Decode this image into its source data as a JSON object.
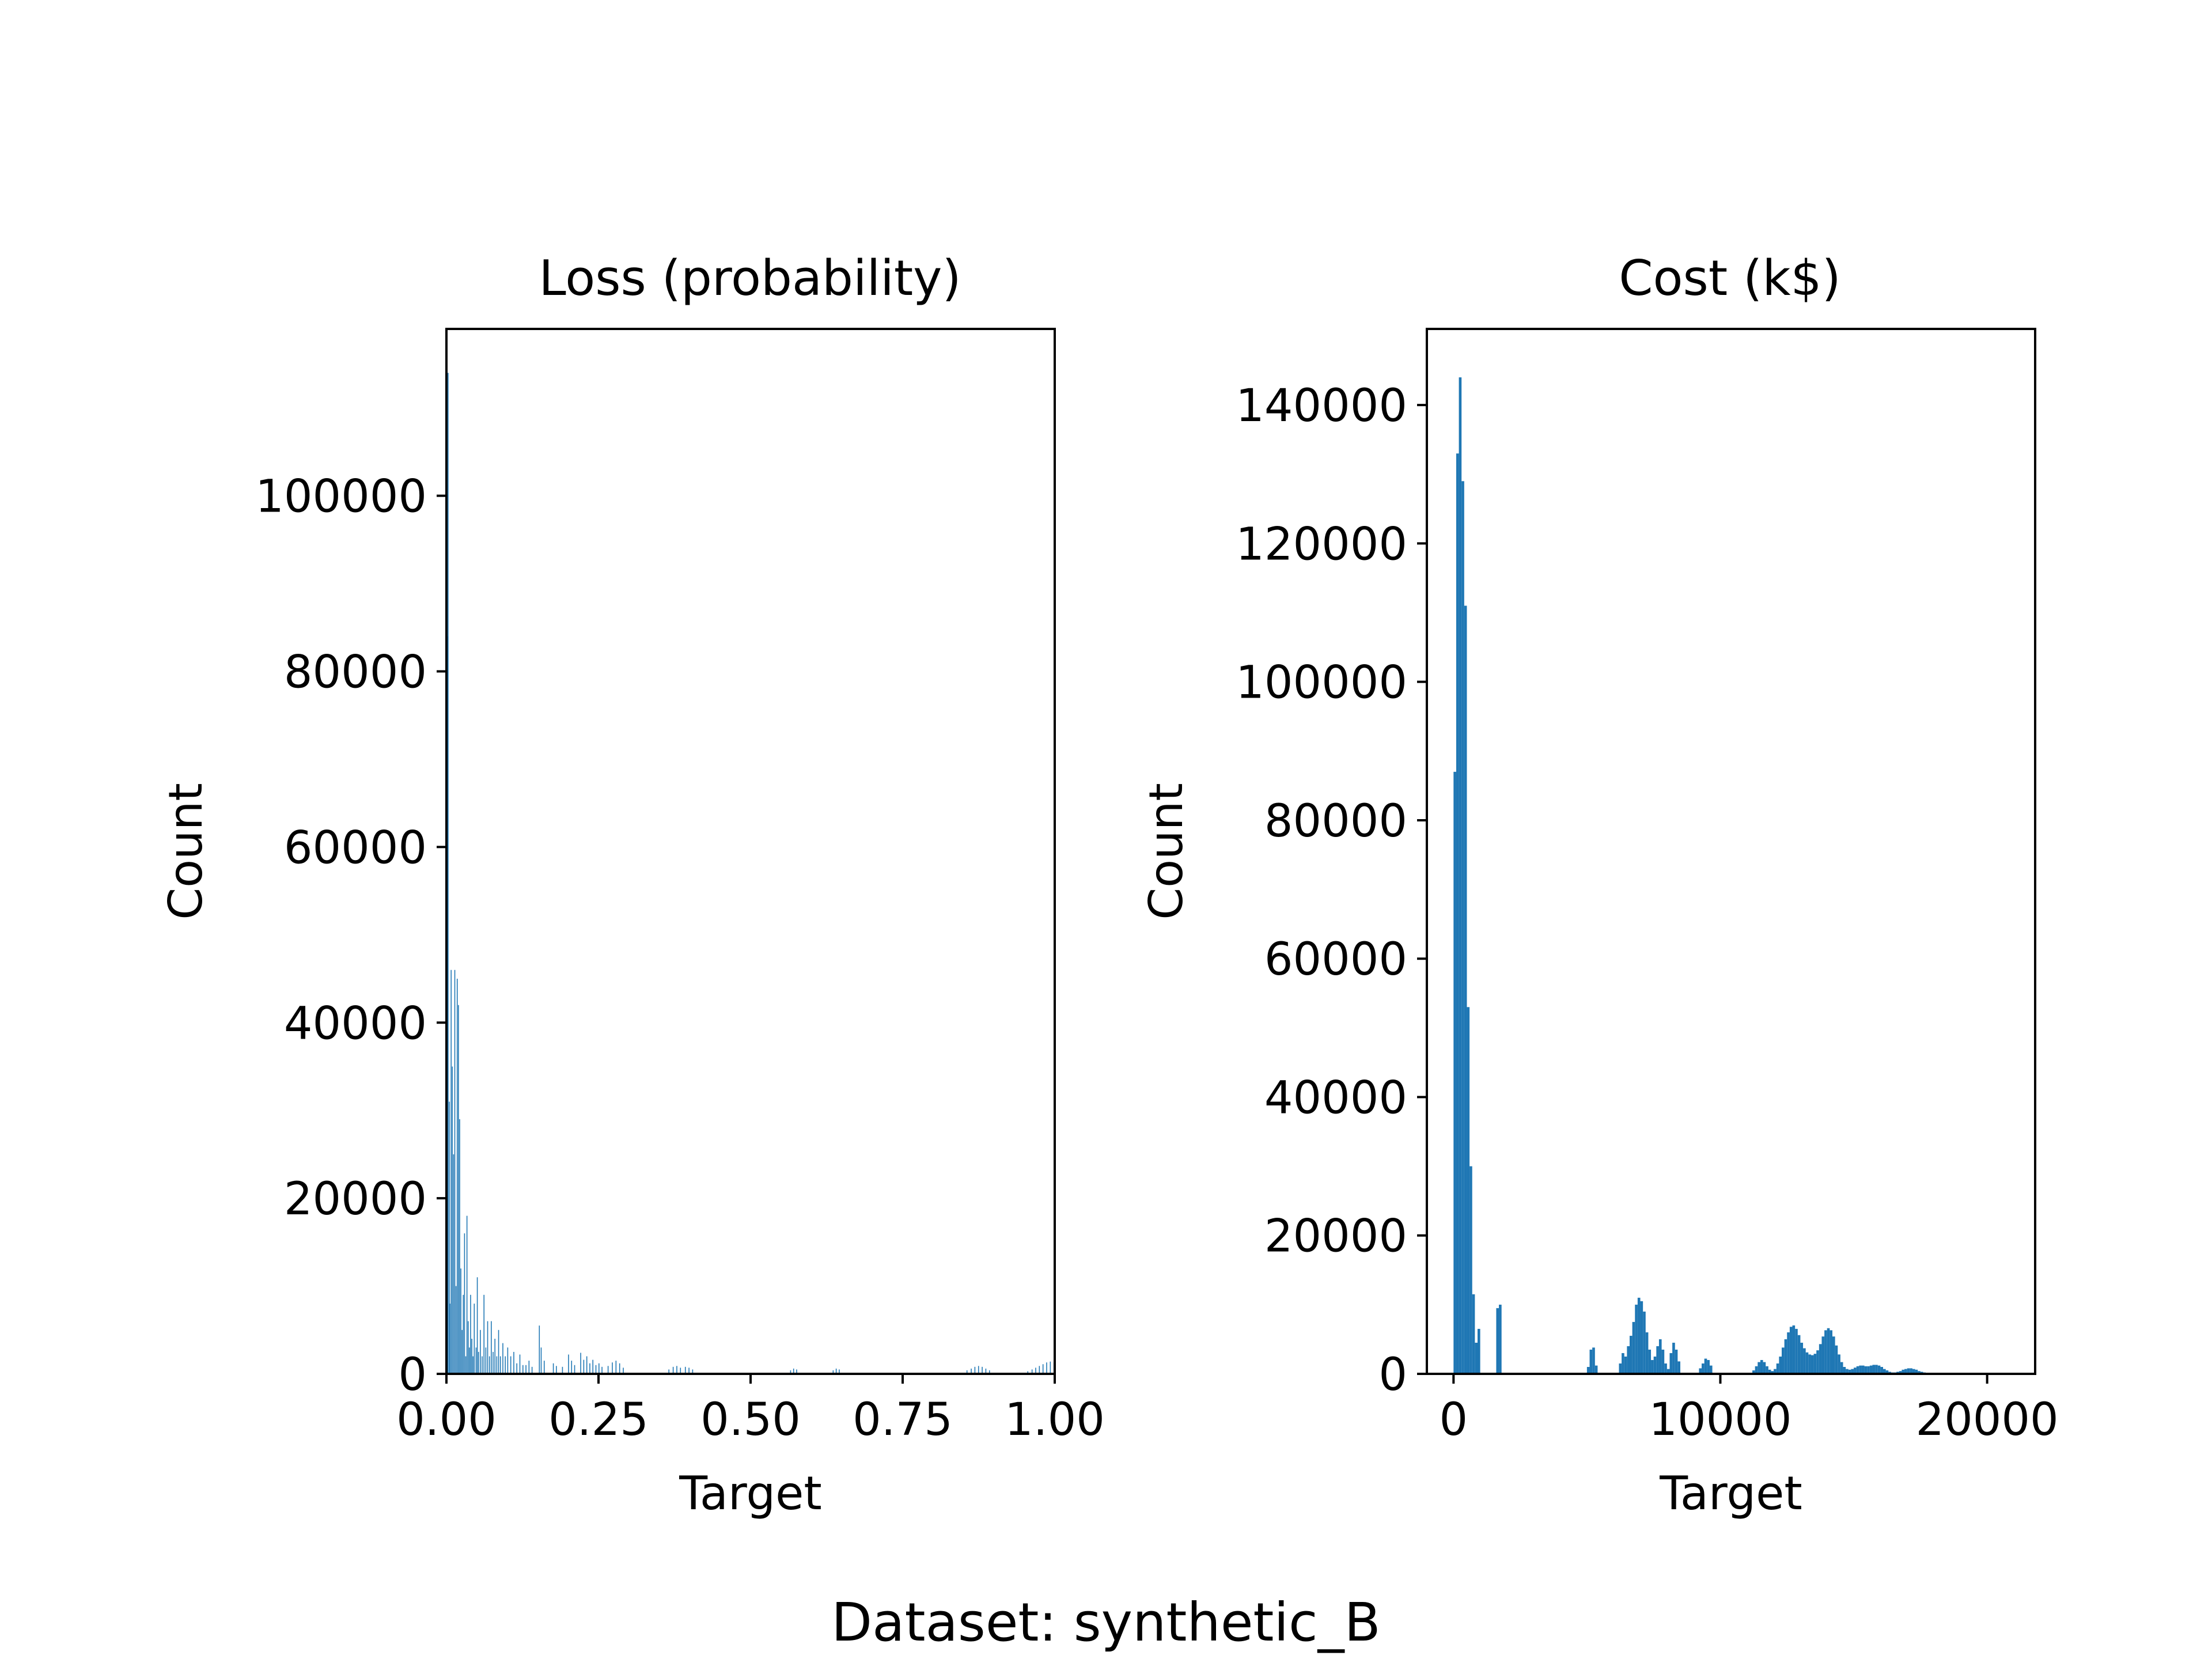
{
  "suptitle": "Dataset: synthetic_B",
  "chart_data": [
    {
      "type": "bar",
      "title": "Loss (probability)",
      "xlabel": "Target",
      "ylabel": "Count",
      "xlim": [
        0,
        1
      ],
      "ylim": [
        0,
        119000
      ],
      "grid": false,
      "color": "#1f77b4",
      "xticks": [
        0,
        0.25,
        0.5,
        0.75,
        1
      ],
      "xtick_labels": [
        "0.00",
        "0.25",
        "0.50",
        "0.75",
        "1.00"
      ],
      "yticks": [
        0,
        20000,
        40000,
        60000,
        80000,
        100000
      ],
      "ytick_labels": [
        "0",
        "20000",
        "40000",
        "60000",
        "80000",
        "100000"
      ],
      "bin_width": 0.0015,
      "bins": [
        [
          0.0,
          12000
        ],
        [
          0.001,
          84000
        ],
        [
          0.002,
          114000
        ],
        [
          0.004,
          31000
        ],
        [
          0.005,
          8000
        ],
        [
          0.007,
          46000
        ],
        [
          0.009,
          35000
        ],
        [
          0.011,
          25000
        ],
        [
          0.013,
          46000
        ],
        [
          0.015,
          10000
        ],
        [
          0.017,
          45000
        ],
        [
          0.019,
          42000
        ],
        [
          0.021,
          29000
        ],
        [
          0.023,
          12000
        ],
        [
          0.025,
          5000
        ],
        [
          0.027,
          9000
        ],
        [
          0.029,
          16000
        ],
        [
          0.031,
          2000
        ],
        [
          0.033,
          18000
        ],
        [
          0.035,
          6000
        ],
        [
          0.037,
          3000
        ],
        [
          0.039,
          9000
        ],
        [
          0.041,
          4000
        ],
        [
          0.043,
          2000
        ],
        [
          0.045,
          8000
        ],
        [
          0.048,
          3000
        ],
        [
          0.05,
          11000
        ],
        [
          0.052,
          2500
        ],
        [
          0.055,
          5000
        ],
        [
          0.058,
          2000
        ],
        [
          0.061,
          9000
        ],
        [
          0.064,
          3000
        ],
        [
          0.067,
          6000
        ],
        [
          0.07,
          2000
        ],
        [
          0.073,
          6000
        ],
        [
          0.076,
          2500
        ],
        [
          0.079,
          4000
        ],
        [
          0.082,
          2000
        ],
        [
          0.085,
          5000
        ],
        [
          0.088,
          2000
        ],
        [
          0.092,
          3500
        ],
        [
          0.096,
          2000
        ],
        [
          0.1,
          3000
        ],
        [
          0.105,
          2000
        ],
        [
          0.11,
          2500
        ],
        [
          0.115,
          1200
        ],
        [
          0.12,
          2200
        ],
        [
          0.125,
          1000
        ],
        [
          0.13,
          1000
        ],
        [
          0.135,
          1500
        ],
        [
          0.14,
          800
        ],
        [
          0.152,
          5500
        ],
        [
          0.155,
          3000
        ],
        [
          0.16,
          1500
        ],
        [
          0.175,
          1200
        ],
        [
          0.18,
          900
        ],
        [
          0.19,
          800
        ],
        [
          0.2,
          2200
        ],
        [
          0.205,
          1500
        ],
        [
          0.21,
          1000
        ],
        [
          0.22,
          2400
        ],
        [
          0.225,
          1600
        ],
        [
          0.23,
          2000
        ],
        [
          0.235,
          1200
        ],
        [
          0.24,
          1600
        ],
        [
          0.245,
          1000
        ],
        [
          0.25,
          1200
        ],
        [
          0.255,
          800
        ],
        [
          0.265,
          900
        ],
        [
          0.272,
          1300
        ],
        [
          0.278,
          1500
        ],
        [
          0.284,
          1200
        ],
        [
          0.29,
          700
        ],
        [
          0.365,
          500
        ],
        [
          0.372,
          800
        ],
        [
          0.378,
          900
        ],
        [
          0.384,
          700
        ],
        [
          0.392,
          800
        ],
        [
          0.398,
          700
        ],
        [
          0.404,
          500
        ],
        [
          0.565,
          400
        ],
        [
          0.57,
          600
        ],
        [
          0.575,
          500
        ],
        [
          0.635,
          400
        ],
        [
          0.64,
          600
        ],
        [
          0.645,
          500
        ],
        [
          0.855,
          400
        ],
        [
          0.862,
          600
        ],
        [
          0.868,
          800
        ],
        [
          0.874,
          900
        ],
        [
          0.88,
          800
        ],
        [
          0.886,
          600
        ],
        [
          0.892,
          400
        ],
        [
          0.955,
          300
        ],
        [
          0.962,
          500
        ],
        [
          0.968,
          700
        ],
        [
          0.974,
          900
        ],
        [
          0.98,
          1100
        ],
        [
          0.986,
          1300
        ],
        [
          0.992,
          1400
        ],
        [
          0.998,
          1300
        ]
      ]
    },
    {
      "type": "bar",
      "title": "Cost (k$)",
      "xlabel": "Target",
      "ylabel": "Count",
      "xlim": [
        -1000,
        21800
      ],
      "ylim": [
        0,
        151000
      ],
      "grid": false,
      "color": "#1f77b4",
      "xticks": [
        0,
        10000,
        20000
      ],
      "xtick_labels": [
        "0",
        "10000",
        "20000"
      ],
      "yticks": [
        0,
        20000,
        40000,
        60000,
        80000,
        100000,
        120000,
        140000
      ],
      "ytick_labels": [
        "0",
        "20000",
        "40000",
        "60000",
        "80000",
        "100000",
        "120000",
        "140000"
      ],
      "bin_width": 100,
      "bins": [
        [
          0,
          87000
        ],
        [
          100,
          133000
        ],
        [
          200,
          144000
        ],
        [
          300,
          129000
        ],
        [
          400,
          111000
        ],
        [
          500,
          53000
        ],
        [
          600,
          30000
        ],
        [
          700,
          11500
        ],
        [
          800,
          4500
        ],
        [
          900,
          6500
        ],
        [
          1600,
          9500
        ],
        [
          1700,
          10000
        ],
        [
          5000,
          1000
        ],
        [
          5100,
          3500
        ],
        [
          5200,
          3800
        ],
        [
          5300,
          1200
        ],
        [
          6200,
          1500
        ],
        [
          6300,
          3000
        ],
        [
          6400,
          2500
        ],
        [
          6500,
          4000
        ],
        [
          6600,
          5500
        ],
        [
          6700,
          7500
        ],
        [
          6800,
          10000
        ],
        [
          6900,
          11000
        ],
        [
          7000,
          10500
        ],
        [
          7100,
          9000
        ],
        [
          7200,
          6000
        ],
        [
          7300,
          3500
        ],
        [
          7400,
          2000
        ],
        [
          7500,
          2500
        ],
        [
          7600,
          4000
        ],
        [
          7700,
          5000
        ],
        [
          7800,
          3500
        ],
        [
          7900,
          1500
        ],
        [
          8000,
          700
        ],
        [
          8100,
          3000
        ],
        [
          8200,
          4500
        ],
        [
          8300,
          3500
        ],
        [
          8400,
          1800
        ],
        [
          9200,
          800
        ],
        [
          9300,
          1500
        ],
        [
          9400,
          2200
        ],
        [
          9500,
          2000
        ],
        [
          9600,
          1200
        ],
        [
          11200,
          500
        ],
        [
          11300,
          1100
        ],
        [
          11400,
          1700
        ],
        [
          11500,
          2000
        ],
        [
          11600,
          1700
        ],
        [
          11700,
          1100
        ],
        [
          11800,
          600
        ],
        [
          11900,
          400
        ],
        [
          12000,
          700
        ],
        [
          12100,
          1500
        ],
        [
          12200,
          2500
        ],
        [
          12300,
          3800
        ],
        [
          12400,
          5000
        ],
        [
          12500,
          6000
        ],
        [
          12600,
          6800
        ],
        [
          12700,
          7000
        ],
        [
          12800,
          6500
        ],
        [
          12900,
          5600
        ],
        [
          13000,
          4500
        ],
        [
          13100,
          3700
        ],
        [
          13200,
          3100
        ],
        [
          13300,
          2800
        ],
        [
          13400,
          2700
        ],
        [
          13500,
          2900
        ],
        [
          13600,
          3400
        ],
        [
          13700,
          4300
        ],
        [
          13800,
          5400
        ],
        [
          13900,
          6300
        ],
        [
          14000,
          6600
        ],
        [
          14100,
          6300
        ],
        [
          14200,
          5400
        ],
        [
          14300,
          4100
        ],
        [
          14400,
          2800
        ],
        [
          14500,
          1700
        ],
        [
          14600,
          1000
        ],
        [
          14700,
          700
        ],
        [
          14800,
          600
        ],
        [
          14900,
          700
        ],
        [
          15000,
          900
        ],
        [
          15100,
          1100
        ],
        [
          15200,
          1200
        ],
        [
          15300,
          1200
        ],
        [
          15400,
          1100
        ],
        [
          15500,
          1100
        ],
        [
          15600,
          1200
        ],
        [
          15700,
          1300
        ],
        [
          15800,
          1300
        ],
        [
          15900,
          1200
        ],
        [
          16000,
          1000
        ],
        [
          16100,
          700
        ],
        [
          16200,
          500
        ],
        [
          16300,
          300
        ],
        [
          16400,
          200
        ],
        [
          16500,
          200
        ],
        [
          16600,
          300
        ],
        [
          16700,
          400
        ],
        [
          16800,
          600
        ],
        [
          16900,
          700
        ],
        [
          17000,
          800
        ],
        [
          17100,
          800
        ],
        [
          17200,
          700
        ],
        [
          17300,
          600
        ],
        [
          17400,
          400
        ],
        [
          17500,
          300
        ],
        [
          17600,
          200
        ]
      ]
    }
  ]
}
